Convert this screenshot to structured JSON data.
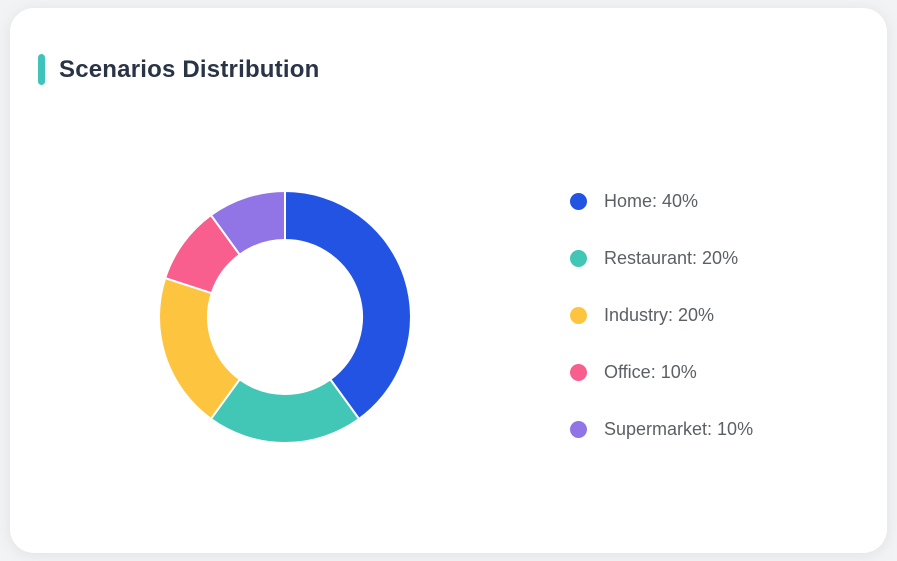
{
  "card": {
    "title": "Scenarios Distribution",
    "accent_color": "#3ec4bb"
  },
  "chart_data": {
    "type": "pie",
    "variant": "donut",
    "title": "Scenarios Distribution",
    "categories": [
      "Home",
      "Restaurant",
      "Industry",
      "Office",
      "Supermarket"
    ],
    "values": [
      40,
      20,
      20,
      10,
      10
    ],
    "unit": "%",
    "colors": [
      "#2353e2",
      "#42c6b5",
      "#fdc53f",
      "#f85e8e",
      "#9174e5"
    ],
    "slice_border_color": "#ffffff",
    "legend_position": "right",
    "legend_labels": [
      "Home: 40%",
      "Restaurant: 20%",
      "Industry: 20%",
      "Office: 10%",
      "Supermarket: 10%"
    ],
    "start_angle_deg": 0,
    "direction": "clockwise",
    "inner_radius_ratio": 0.61
  }
}
